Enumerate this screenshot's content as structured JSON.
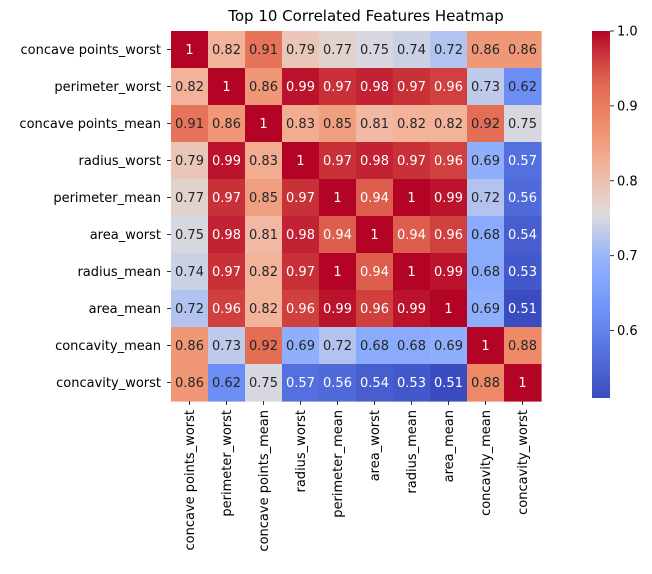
{
  "chart_data": {
    "type": "heatmap",
    "title": "Top 10 Correlated Features Heatmap",
    "xlabel": "",
    "ylabel": "",
    "rows": [
      "concave points_worst",
      "perimeter_worst",
      "concave points_mean",
      "radius_worst",
      "perimeter_mean",
      "area_worst",
      "radius_mean",
      "area_mean",
      "concavity_mean",
      "concavity_worst"
    ],
    "columns": [
      "concave points_worst",
      "perimeter_worst",
      "concave points_mean",
      "radius_worst",
      "perimeter_mean",
      "area_worst",
      "radius_mean",
      "area_mean",
      "concavity_mean",
      "concavity_worst"
    ],
    "values": [
      [
        1.0,
        0.82,
        0.91,
        0.79,
        0.77,
        0.75,
        0.74,
        0.72,
        0.86,
        0.86
      ],
      [
        0.82,
        1.0,
        0.86,
        0.99,
        0.97,
        0.98,
        0.97,
        0.96,
        0.73,
        0.62
      ],
      [
        0.91,
        0.86,
        1.0,
        0.83,
        0.85,
        0.81,
        0.82,
        0.82,
        0.92,
        0.75
      ],
      [
        0.79,
        0.99,
        0.83,
        1.0,
        0.97,
        0.98,
        0.97,
        0.96,
        0.69,
        0.57
      ],
      [
        0.77,
        0.97,
        0.85,
        0.97,
        1.0,
        0.94,
        1.0,
        0.99,
        0.72,
        0.56
      ],
      [
        0.75,
        0.98,
        0.81,
        0.98,
        0.94,
        1.0,
        0.94,
        0.96,
        0.68,
        0.54
      ],
      [
        0.74,
        0.97,
        0.82,
        0.97,
        1.0,
        0.94,
        1.0,
        0.99,
        0.68,
        0.53
      ],
      [
        0.72,
        0.96,
        0.82,
        0.96,
        0.99,
        0.96,
        0.99,
        1.0,
        0.69,
        0.51
      ],
      [
        0.86,
        0.73,
        0.92,
        0.69,
        0.72,
        0.68,
        0.68,
        0.69,
        1.0,
        0.88
      ],
      [
        0.86,
        0.62,
        0.75,
        0.57,
        0.56,
        0.54,
        0.53,
        0.51,
        0.88,
        1.0
      ]
    ],
    "annotations": [
      [
        "1",
        "0.82",
        "0.91",
        "0.79",
        "0.77",
        "0.75",
        "0.74",
        "0.72",
        "0.86",
        "0.86"
      ],
      [
        "0.82",
        "1",
        "0.86",
        "0.99",
        "0.97",
        "0.98",
        "0.97",
        "0.96",
        "0.73",
        "0.62"
      ],
      [
        "0.91",
        "0.86",
        "1",
        "0.83",
        "0.85",
        "0.81",
        "0.82",
        "0.82",
        "0.92",
        "0.75"
      ],
      [
        "0.79",
        "0.99",
        "0.83",
        "1",
        "0.97",
        "0.98",
        "0.97",
        "0.96",
        "0.69",
        "0.57"
      ],
      [
        "0.77",
        "0.97",
        "0.85",
        "0.97",
        "1",
        "0.94",
        "1",
        "0.99",
        "0.72",
        "0.56"
      ],
      [
        "0.75",
        "0.98",
        "0.81",
        "0.98",
        "0.94",
        "1",
        "0.94",
        "0.96",
        "0.68",
        "0.54"
      ],
      [
        "0.74",
        "0.97",
        "0.82",
        "0.97",
        "1",
        "0.94",
        "1",
        "0.99",
        "0.68",
        "0.53"
      ],
      [
        "0.72",
        "0.96",
        "0.82",
        "0.96",
        "0.99",
        "0.96",
        "0.99",
        "1",
        "0.69",
        "0.51"
      ],
      [
        "0.86",
        "0.73",
        "0.92",
        "0.69",
        "0.72",
        "0.68",
        "0.68",
        "0.69",
        "1",
        "0.88"
      ],
      [
        "0.86",
        "0.62",
        "0.75",
        "0.57",
        "0.56",
        "0.54",
        "0.53",
        "0.51",
        "0.88",
        "1"
      ]
    ],
    "colormap": "coolwarm",
    "colorbar": {
      "range": [
        0.51,
        1.0
      ],
      "ticks": [
        0.6,
        0.7,
        0.8,
        0.9,
        1.0
      ],
      "tick_labels": [
        "0.6",
        "0.7",
        "0.8",
        "0.9",
        "1.0"
      ]
    },
    "grid": false,
    "legend": "colorbar-right"
  }
}
